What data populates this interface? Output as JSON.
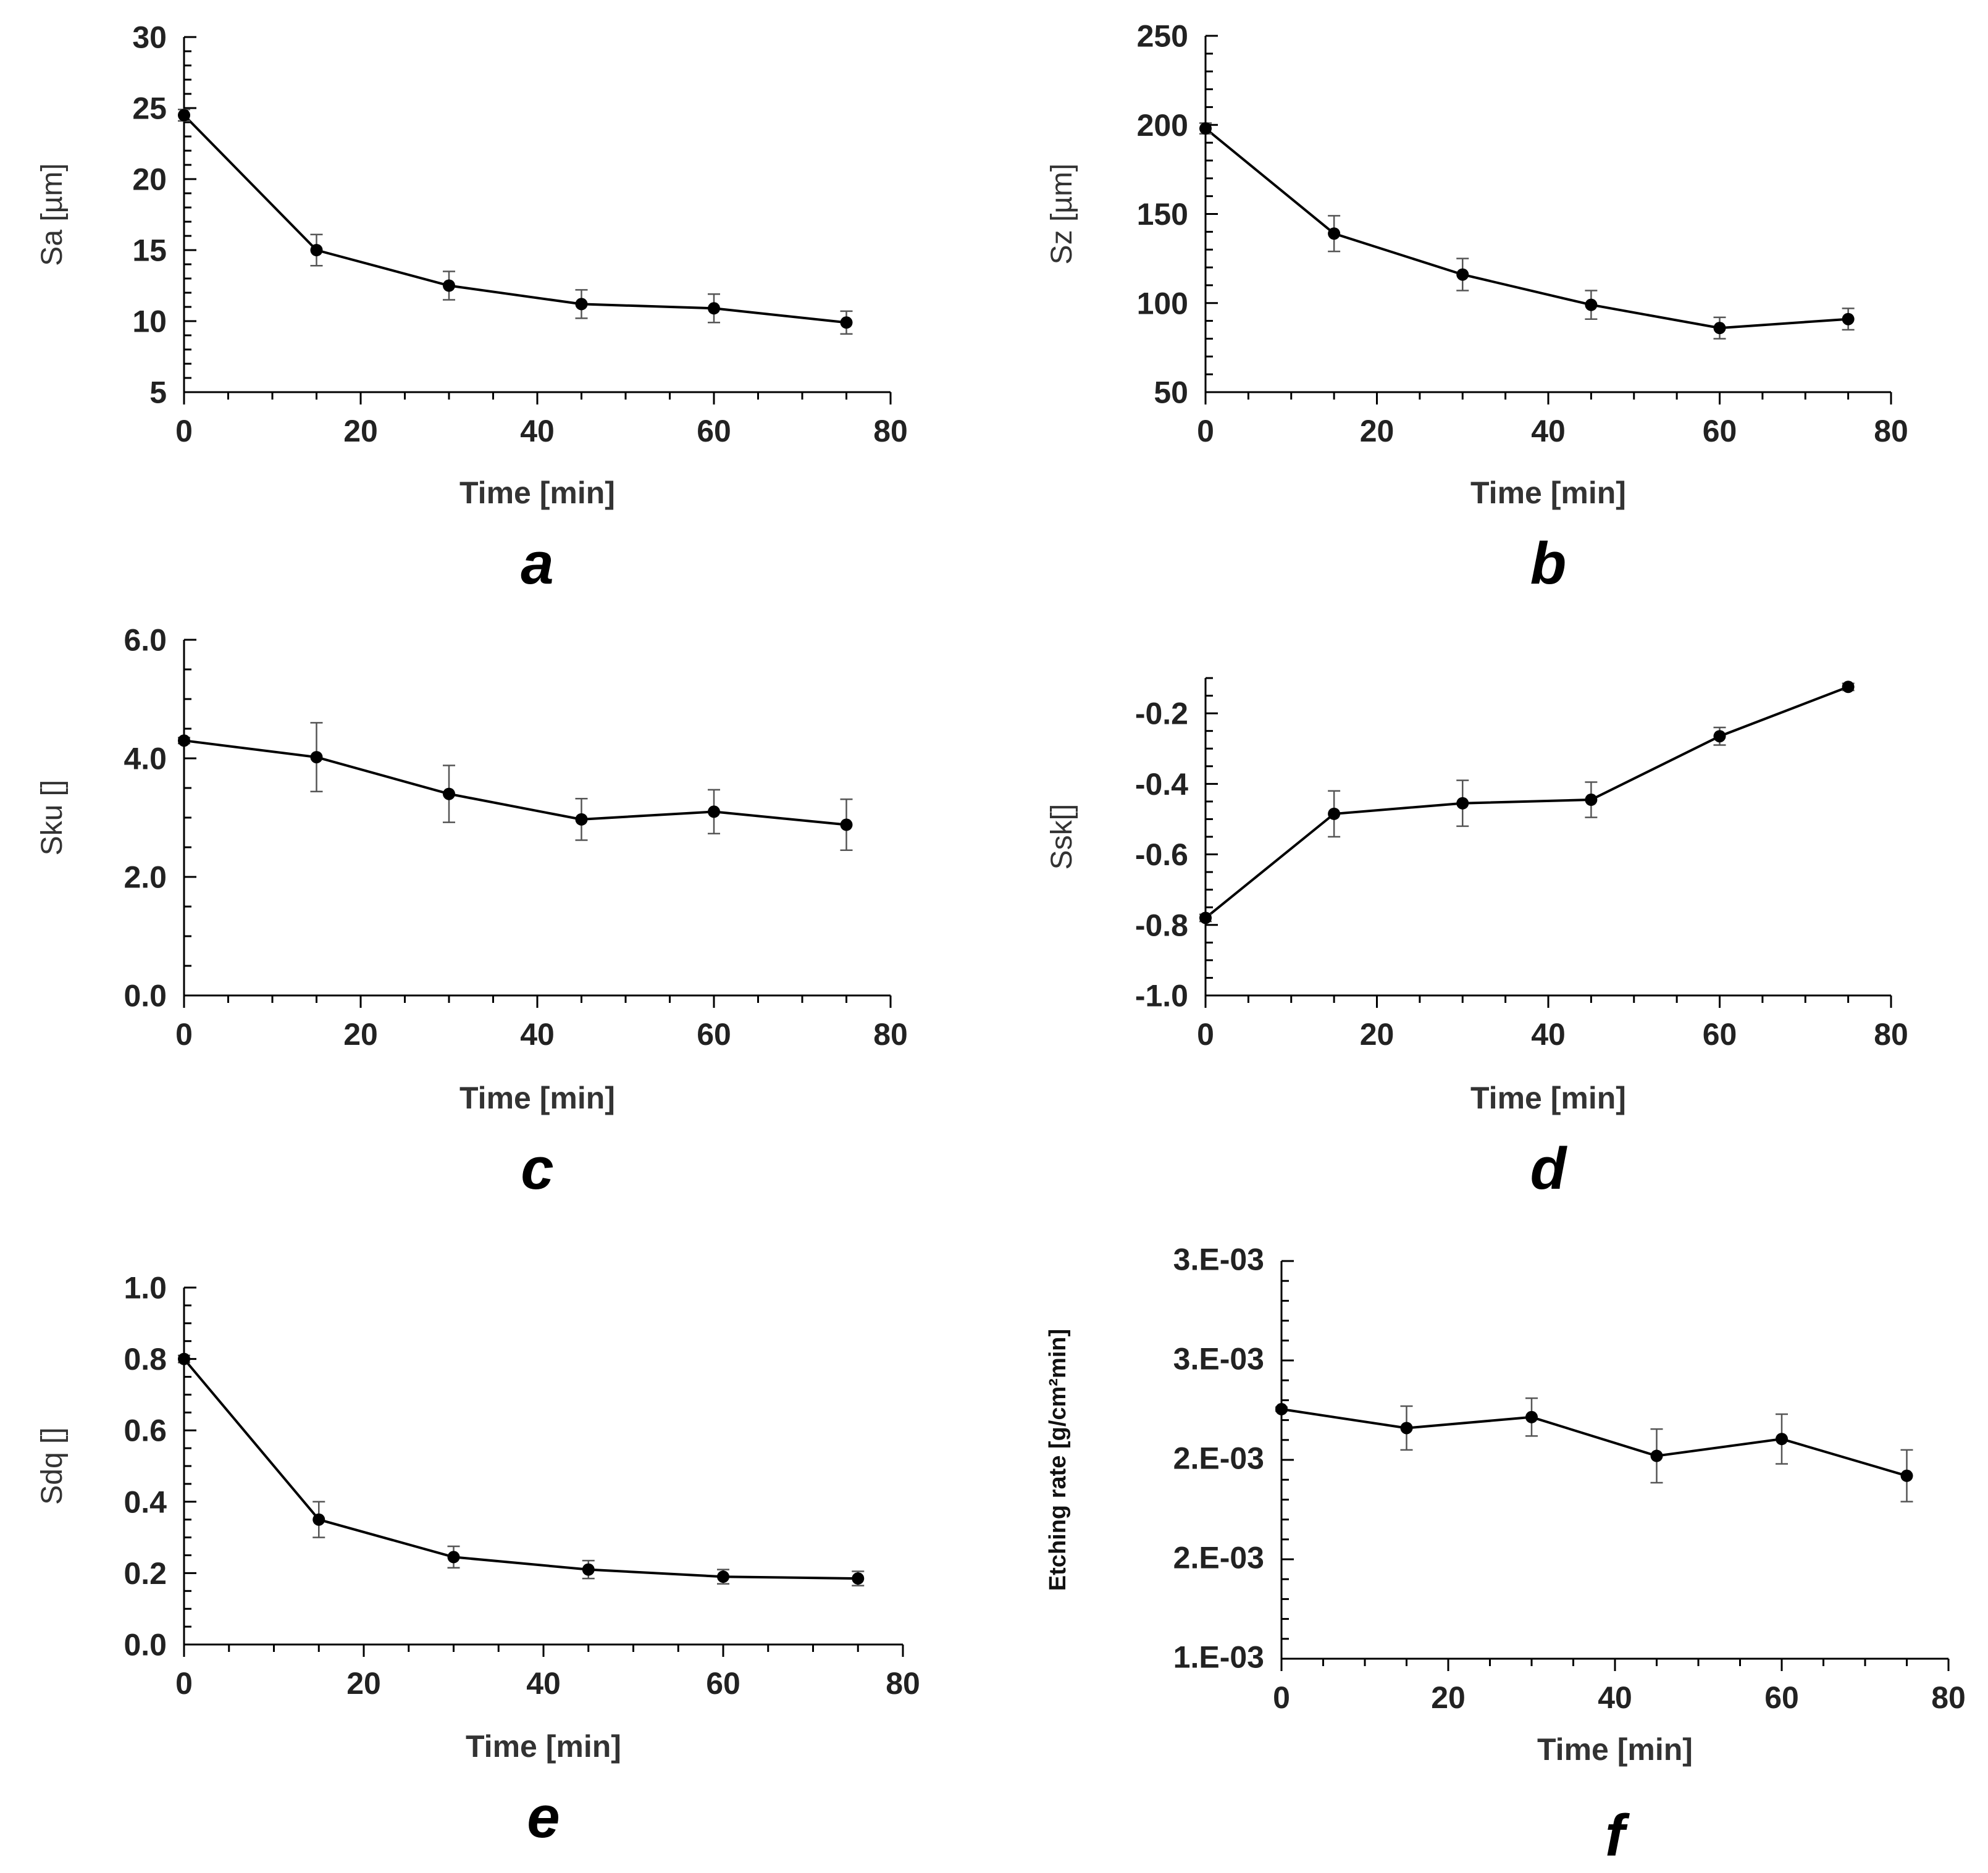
{
  "chart_data": [
    {
      "panel": "a",
      "type": "line",
      "xlabel": "Time [min]",
      "ylabel": "Sa [µm]",
      "xlim": [
        0,
        80
      ],
      "ylim": [
        5,
        30
      ],
      "x_ticks": [
        0,
        20,
        40,
        60,
        80
      ],
      "y_ticks": [
        5,
        10,
        15,
        20,
        25,
        30
      ],
      "y_tick_labels": [
        "5",
        "10",
        "15",
        "20",
        "25",
        "30"
      ],
      "x_minor_step": 5,
      "y_minor_step": 1,
      "series": [
        {
          "name": "Sa",
          "x": [
            0,
            15,
            30,
            45,
            60,
            75
          ],
          "values": [
            24.5,
            15.0,
            12.5,
            11.2,
            10.9,
            9.9
          ],
          "errors": [
            0.4,
            1.1,
            1.0,
            1.0,
            1.0,
            0.8
          ]
        }
      ]
    },
    {
      "panel": "b",
      "type": "line",
      "xlabel": "Time [min]",
      "ylabel": "Sz [µm]",
      "xlim": [
        0,
        80
      ],
      "ylim": [
        50,
        250
      ],
      "x_ticks": [
        0,
        20,
        40,
        60,
        80
      ],
      "y_ticks": [
        50,
        100,
        150,
        200,
        250
      ],
      "y_tick_labels": [
        "50",
        "100",
        "150",
        "200",
        "250"
      ],
      "x_minor_step": 5,
      "y_minor_step": 10,
      "series": [
        {
          "name": "Sz",
          "x": [
            0,
            15,
            30,
            45,
            60,
            75
          ],
          "values": [
            198,
            139,
            116,
            99,
            86,
            91
          ],
          "errors": [
            3,
            10,
            9,
            8,
            6,
            6
          ]
        }
      ]
    },
    {
      "panel": "c",
      "type": "line",
      "xlabel": "Time [min]",
      "ylabel": "Sku []",
      "xlim": [
        0,
        80
      ],
      "ylim": [
        0,
        6
      ],
      "x_ticks": [
        0,
        20,
        40,
        60,
        80
      ],
      "y_ticks": [
        0,
        2,
        4,
        6
      ],
      "y_tick_labels": [
        "0.0",
        "2.0",
        "4.0",
        "6.0"
      ],
      "x_minor_step": 5,
      "y_minor_step": 0.5,
      "series": [
        {
          "name": "Sku",
          "x": [
            0,
            15,
            30,
            45,
            60,
            75
          ],
          "values": [
            4.3,
            4.02,
            3.4,
            2.97,
            3.1,
            2.88
          ],
          "errors": [
            0.05,
            0.58,
            0.48,
            0.35,
            0.37,
            0.43
          ]
        }
      ]
    },
    {
      "panel": "d",
      "type": "line",
      "xlabel": "Time [min]",
      "ylabel": "Ssk[]",
      "xlim": [
        0,
        80
      ],
      "ylim": [
        -1.0,
        -0.1
      ],
      "x_ticks": [
        0,
        20,
        40,
        60,
        80
      ],
      "y_ticks": [
        -1.0,
        -0.8,
        -0.6,
        -0.4,
        -0.2
      ],
      "y_tick_labels": [
        "-1.0",
        "-0.8",
        "-0.6",
        "-0.4",
        "-0.2"
      ],
      "x_minor_step": 5,
      "y_minor_step": 0.05,
      "series": [
        {
          "name": "Ssk",
          "x": [
            0,
            15,
            30,
            45,
            60,
            75
          ],
          "values": [
            -0.78,
            -0.485,
            -0.455,
            -0.445,
            -0.265,
            -0.125
          ],
          "errors": [
            0.01,
            0.065,
            0.065,
            0.05,
            0.025,
            0.01
          ]
        }
      ]
    },
    {
      "panel": "e",
      "type": "line",
      "xlabel": "Time [min]",
      "ylabel": "Sdq []",
      "xlim": [
        0,
        80
      ],
      "ylim": [
        0,
        1.0
      ],
      "x_ticks": [
        0,
        20,
        40,
        60,
        80
      ],
      "y_ticks": [
        0,
        0.2,
        0.4,
        0.6,
        0.8,
        1.0
      ],
      "y_tick_labels": [
        "0.0",
        "0.2",
        "0.4",
        "0.6",
        "0.8",
        "1.0"
      ],
      "x_minor_step": 5,
      "y_minor_step": 0.05,
      "series": [
        {
          "name": "Sdq",
          "x": [
            0,
            15,
            30,
            45,
            60,
            75
          ],
          "values": [
            0.8,
            0.35,
            0.245,
            0.21,
            0.19,
            0.185
          ],
          "errors": [
            0.01,
            0.05,
            0.03,
            0.025,
            0.02,
            0.02
          ]
        }
      ]
    },
    {
      "panel": "f",
      "type": "line",
      "xlabel": "Time [min]",
      "ylabel": "Etching rate [g/cm²min]",
      "xlim": [
        0,
        80
      ],
      "ylim": [
        0.0013,
        0.0033
      ],
      "x_ticks": [
        0,
        20,
        40,
        60,
        80
      ],
      "y_ticks": [
        0.0013,
        0.0018,
        0.0023,
        0.0028,
        0.0033
      ],
      "y_tick_labels": [
        "1.E-03",
        "2.E-03",
        "2.E-03",
        "3.E-03",
        "3.E-03"
      ],
      "x_minor_step": 5,
      "y_minor_step": 0.0001,
      "series": [
        {
          "name": "Etching rate",
          "x": [
            0,
            15,
            30,
            45,
            60,
            75
          ],
          "values": [
            0.002555,
            0.00246,
            0.002515,
            0.00232,
            0.002405,
            0.00222
          ],
          "errors": [
            1e-05,
            0.00011,
            9.5e-05,
            0.000135,
            0.000125,
            0.00013
          ]
        }
      ]
    }
  ]
}
